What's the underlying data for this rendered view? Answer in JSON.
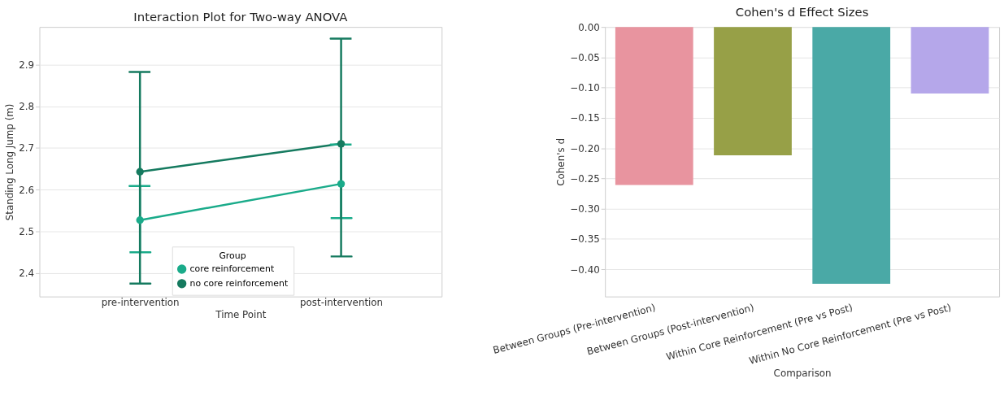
{
  "chart_data": [
    {
      "type": "line",
      "title": "Interaction Plot for Two-way ANOVA",
      "xlabel": "Time Point",
      "ylabel": "Standing Long Jump (m)",
      "legend_title": "Group",
      "categories": [
        "pre-intervention",
        "post-intervention"
      ],
      "series": [
        {
          "name": "core reinforcement",
          "color": "#1aab8a",
          "values": [
            2.527,
            2.614
          ],
          "errors": [
            [
              2.45,
              2.609
            ],
            [
              2.532,
              2.708
            ]
          ]
        },
        {
          "name": "no core reinforcement",
          "color": "#157a5f",
          "values": [
            2.643,
            2.71
          ],
          "errors": [
            [
              2.375,
              2.882
            ],
            [
              2.44,
              2.962
            ]
          ]
        }
      ],
      "ylim": [
        2.344,
        2.99
      ],
      "yticks": [
        2.4,
        2.5,
        2.6,
        2.7,
        2.8,
        2.9
      ],
      "grid": "y",
      "legend": "bottom",
      "marker": "circle",
      "line_style": "solid"
    },
    {
      "type": "bar",
      "title": "Cohen's d Effect Sizes",
      "xlabel": "Comparison",
      "ylabel": "Cohen's d",
      "categories": [
        "Between Groups (Pre-intervention)",
        "Between Groups (Post-intervention)",
        "Within Core Reinforcement (Pre vs Post)",
        "Within No Core Reinforcement (Pre vs Post)"
      ],
      "values": [
        -0.261,
        -0.212,
        -0.424,
        -0.11
      ],
      "colors": [
        "#e8949f",
        "#97a047",
        "#4aa9a6",
        "#b5a7ea"
      ],
      "ylim": [
        -0.445,
        0
      ],
      "yticks": [
        {
          "value": 0,
          "label": "0.00"
        },
        {
          "value": -0.05,
          "label": "−0.05"
        },
        {
          "value": -0.1,
          "label": "−0.10"
        },
        {
          "value": -0.15,
          "label": "−0.15"
        },
        {
          "value": -0.2,
          "label": "−0.20"
        },
        {
          "value": -0.25,
          "label": "−0.25"
        },
        {
          "value": -0.3,
          "label": "−0.30"
        },
        {
          "value": -0.35,
          "label": "−0.35"
        },
        {
          "value": -0.4,
          "label": "−0.40"
        }
      ],
      "grid": "y"
    }
  ]
}
